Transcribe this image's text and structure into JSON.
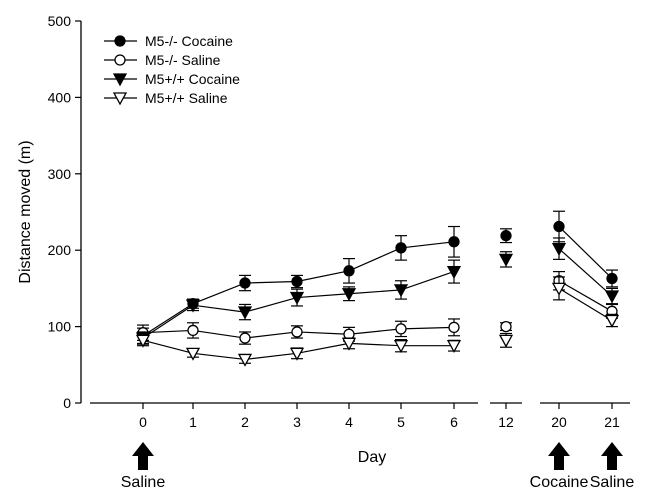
{
  "chart_data": {
    "type": "line",
    "xlabel": "Day",
    "ylabel": "Distance moved (m)",
    "ylim": [
      0,
      500
    ],
    "y_ticks": [
      "0",
      "100",
      "200",
      "300",
      "400",
      "500"
    ],
    "days": [
      "0",
      "1",
      "2",
      "3",
      "4",
      "5",
      "6",
      "12",
      "20",
      "21"
    ],
    "segments": [
      [
        0,
        1,
        2,
        3,
        4,
        5,
        6
      ],
      [
        7
      ],
      [
        8,
        9
      ]
    ],
    "legend_position": "top-left",
    "series": [
      {
        "name": "M5-/- Cocaine",
        "marker": "circle-filled",
        "values": [
          88,
          130,
          157,
          159,
          173,
          203,
          211,
          219,
          231,
          163
        ],
        "errors": [
          10,
          6,
          10,
          8,
          16,
          16,
          20,
          9,
          20,
          11
        ]
      },
      {
        "name": "M5-/- Saline",
        "marker": "circle-open",
        "values": [
          92,
          95,
          85,
          93,
          90,
          97,
          99,
          100,
          160,
          120
        ],
        "errors": [
          10,
          10,
          8,
          8,
          9,
          10,
          11,
          5,
          12,
          9
        ]
      },
      {
        "name": "M5+/+ Cocaine",
        "marker": "triangle-filled",
        "values": [
          85,
          128,
          119,
          138,
          143,
          148,
          172,
          188,
          202,
          140
        ],
        "errors": [
          8,
          7,
          10,
          11,
          9,
          12,
          15,
          10,
          14,
          10
        ]
      },
      {
        "name": "M5+/+ Saline",
        "marker": "triangle-open",
        "values": [
          82,
          65,
          57,
          65,
          78,
          75,
          75,
          82,
          150,
          108
        ],
        "errors": [
          7,
          5,
          5,
          7,
          7,
          8,
          7,
          9,
          15,
          8
        ]
      }
    ],
    "annotations": [
      {
        "day_index": 0,
        "label": "Saline"
      },
      {
        "day_index": 8,
        "label": "Cocaine"
      },
      {
        "day_index": 9,
        "label": "Saline"
      }
    ]
  }
}
